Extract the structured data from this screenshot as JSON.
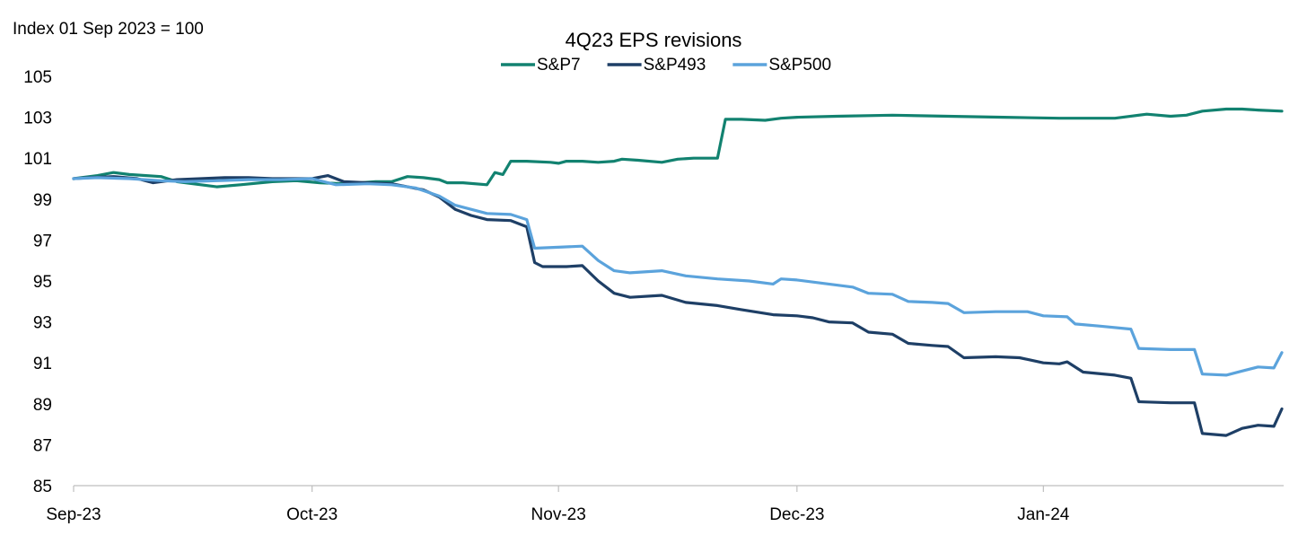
{
  "chart_data": {
    "type": "line",
    "title": "4Q23 EPS revisions",
    "index_note": "Index 01 Sep 2023 = 100",
    "xlabel": "",
    "ylabel": "",
    "ylim": [
      85,
      105
    ],
    "yticks": [
      85,
      87,
      89,
      91,
      93,
      95,
      97,
      99,
      101,
      103,
      105
    ],
    "xlim": [
      "2023-09-01",
      "2024-01-31"
    ],
    "xticks": [
      {
        "date": "2023-09-01",
        "label": "Sep-23"
      },
      {
        "date": "2023-10-01",
        "label": "Oct-23"
      },
      {
        "date": "2023-11-01",
        "label": "Nov-23"
      },
      {
        "date": "2023-12-01",
        "label": "Dec-23"
      },
      {
        "date": "2024-01-01",
        "label": "Jan-24"
      }
    ],
    "grid": false,
    "legend_position": "top-center",
    "series": [
      {
        "name": "S&P7",
        "color": "#128270",
        "points": [
          [
            "2023-09-01",
            100.0
          ],
          [
            "2023-09-04",
            100.15
          ],
          [
            "2023-09-06",
            100.3
          ],
          [
            "2023-09-08",
            100.2
          ],
          [
            "2023-09-12",
            100.1
          ],
          [
            "2023-09-14",
            99.85
          ],
          [
            "2023-09-15",
            99.8
          ],
          [
            "2023-09-19",
            99.6
          ],
          [
            "2023-09-22",
            99.7
          ],
          [
            "2023-09-26",
            99.85
          ],
          [
            "2023-09-29",
            99.9
          ],
          [
            "2023-10-02",
            99.8
          ],
          [
            "2023-10-05",
            99.75
          ],
          [
            "2023-10-07",
            99.8
          ],
          [
            "2023-10-09",
            99.85
          ],
          [
            "2023-10-11",
            99.85
          ],
          [
            "2023-10-13",
            100.1
          ],
          [
            "2023-10-15",
            100.05
          ],
          [
            "2023-10-17",
            99.95
          ],
          [
            "2023-10-18",
            99.8
          ],
          [
            "2023-10-20",
            99.8
          ],
          [
            "2023-10-23",
            99.7
          ],
          [
            "2023-10-24",
            100.3
          ],
          [
            "2023-10-25",
            100.2
          ],
          [
            "2023-10-26",
            100.85
          ],
          [
            "2023-10-28",
            100.85
          ],
          [
            "2023-10-31",
            100.8
          ],
          [
            "2023-11-01",
            100.75
          ],
          [
            "2023-11-02",
            100.85
          ],
          [
            "2023-11-04",
            100.85
          ],
          [
            "2023-11-06",
            100.8
          ],
          [
            "2023-11-08",
            100.85
          ],
          [
            "2023-11-09",
            100.95
          ],
          [
            "2023-11-11",
            100.9
          ],
          [
            "2023-11-14",
            100.8
          ],
          [
            "2023-11-16",
            100.95
          ],
          [
            "2023-11-18",
            101.0
          ],
          [
            "2023-11-21",
            101.0
          ],
          [
            "2023-11-22",
            102.9
          ],
          [
            "2023-11-24",
            102.9
          ],
          [
            "2023-11-27",
            102.85
          ],
          [
            "2023-11-29",
            102.95
          ],
          [
            "2023-12-01",
            103.0
          ],
          [
            "2023-12-06",
            103.05
          ],
          [
            "2023-12-13",
            103.1
          ],
          [
            "2023-12-20",
            103.05
          ],
          [
            "2023-12-27",
            103.0
          ],
          [
            "2024-01-03",
            102.95
          ],
          [
            "2024-01-10",
            102.95
          ],
          [
            "2024-01-14",
            103.15
          ],
          [
            "2024-01-17",
            103.05
          ],
          [
            "2024-01-19",
            103.1
          ],
          [
            "2024-01-21",
            103.3
          ],
          [
            "2024-01-24",
            103.4
          ],
          [
            "2024-01-26",
            103.4
          ],
          [
            "2024-01-28",
            103.35
          ],
          [
            "2024-01-31",
            103.3
          ]
        ]
      },
      {
        "name": "S&P493",
        "color": "#1E3F66",
        "points": [
          [
            "2023-09-01",
            100.0
          ],
          [
            "2023-09-03",
            100.05
          ],
          [
            "2023-09-06",
            100.1
          ],
          [
            "2023-09-09",
            100.0
          ],
          [
            "2023-09-11",
            99.8
          ],
          [
            "2023-09-14",
            99.95
          ],
          [
            "2023-09-17",
            100.0
          ],
          [
            "2023-09-20",
            100.05
          ],
          [
            "2023-09-23",
            100.05
          ],
          [
            "2023-09-26",
            100.0
          ],
          [
            "2023-09-29",
            100.0
          ],
          [
            "2023-10-01",
            100.0
          ],
          [
            "2023-10-03",
            100.15
          ],
          [
            "2023-10-05",
            99.85
          ],
          [
            "2023-10-08",
            99.8
          ],
          [
            "2023-10-11",
            99.75
          ],
          [
            "2023-10-13",
            99.6
          ],
          [
            "2023-10-15",
            99.45
          ],
          [
            "2023-10-17",
            99.1
          ],
          [
            "2023-10-19",
            98.5
          ],
          [
            "2023-10-21",
            98.2
          ],
          [
            "2023-10-23",
            98.0
          ],
          [
            "2023-10-26",
            97.95
          ],
          [
            "2023-10-28",
            97.65
          ],
          [
            "2023-10-29",
            95.9
          ],
          [
            "2023-10-30",
            95.7
          ],
          [
            "2023-11-02",
            95.7
          ],
          [
            "2023-11-04",
            95.75
          ],
          [
            "2023-11-06",
            95.0
          ],
          [
            "2023-11-08",
            94.4
          ],
          [
            "2023-11-10",
            94.2
          ],
          [
            "2023-11-14",
            94.3
          ],
          [
            "2023-11-17",
            93.95
          ],
          [
            "2023-11-21",
            93.8
          ],
          [
            "2023-11-24",
            93.6
          ],
          [
            "2023-11-28",
            93.35
          ],
          [
            "2023-12-01",
            93.3
          ],
          [
            "2023-12-03",
            93.2
          ],
          [
            "2023-12-05",
            93.0
          ],
          [
            "2023-12-08",
            92.95
          ],
          [
            "2023-12-10",
            92.5
          ],
          [
            "2023-12-13",
            92.4
          ],
          [
            "2023-12-15",
            91.95
          ],
          [
            "2023-12-18",
            91.85
          ],
          [
            "2023-12-20",
            91.8
          ],
          [
            "2023-12-22",
            91.25
          ],
          [
            "2023-12-26",
            91.3
          ],
          [
            "2023-12-29",
            91.25
          ],
          [
            "2024-01-01",
            91.0
          ],
          [
            "2024-01-03",
            90.95
          ],
          [
            "2024-01-04",
            91.05
          ],
          [
            "2024-01-06",
            90.55
          ],
          [
            "2024-01-10",
            90.4
          ],
          [
            "2024-01-12",
            90.25
          ],
          [
            "2024-01-13",
            89.1
          ],
          [
            "2024-01-17",
            89.05
          ],
          [
            "2024-01-20",
            89.05
          ],
          [
            "2024-01-21",
            87.55
          ],
          [
            "2024-01-24",
            87.45
          ],
          [
            "2024-01-26",
            87.8
          ],
          [
            "2024-01-28",
            87.95
          ],
          [
            "2024-01-30",
            87.9
          ],
          [
            "2024-01-31",
            88.75
          ]
        ]
      },
      {
        "name": "S&P500",
        "color": "#5BA3DC",
        "points": [
          [
            "2023-09-01",
            100.0
          ],
          [
            "2023-09-04",
            100.05
          ],
          [
            "2023-09-08",
            100.0
          ],
          [
            "2023-09-12",
            99.9
          ],
          [
            "2023-09-15",
            99.85
          ],
          [
            "2023-09-19",
            99.9
          ],
          [
            "2023-09-23",
            99.95
          ],
          [
            "2023-09-27",
            99.95
          ],
          [
            "2023-10-01",
            100.0
          ],
          [
            "2023-10-04",
            99.7
          ],
          [
            "2023-10-08",
            99.75
          ],
          [
            "2023-10-11",
            99.7
          ],
          [
            "2023-10-14",
            99.55
          ],
          [
            "2023-10-17",
            99.15
          ],
          [
            "2023-10-19",
            98.7
          ],
          [
            "2023-10-21",
            98.5
          ],
          [
            "2023-10-23",
            98.3
          ],
          [
            "2023-10-26",
            98.25
          ],
          [
            "2023-10-28",
            98.0
          ],
          [
            "2023-10-29",
            96.6
          ],
          [
            "2023-11-01",
            96.65
          ],
          [
            "2023-11-04",
            96.7
          ],
          [
            "2023-11-06",
            96.0
          ],
          [
            "2023-11-08",
            95.5
          ],
          [
            "2023-11-10",
            95.4
          ],
          [
            "2023-11-14",
            95.5
          ],
          [
            "2023-11-17",
            95.25
          ],
          [
            "2023-11-21",
            95.1
          ],
          [
            "2023-11-25",
            95.0
          ],
          [
            "2023-11-28",
            94.85
          ],
          [
            "2023-11-29",
            95.1
          ],
          [
            "2023-12-01",
            95.05
          ],
          [
            "2023-12-05",
            94.85
          ],
          [
            "2023-12-08",
            94.7
          ],
          [
            "2023-12-10",
            94.4
          ],
          [
            "2023-12-13",
            94.35
          ],
          [
            "2023-12-15",
            94.0
          ],
          [
            "2023-12-18",
            93.95
          ],
          [
            "2023-12-20",
            93.9
          ],
          [
            "2023-12-22",
            93.45
          ],
          [
            "2023-12-26",
            93.5
          ],
          [
            "2023-12-30",
            93.5
          ],
          [
            "2024-01-01",
            93.3
          ],
          [
            "2024-01-04",
            93.25
          ],
          [
            "2024-01-05",
            92.9
          ],
          [
            "2024-01-08",
            92.8
          ],
          [
            "2024-01-12",
            92.65
          ],
          [
            "2024-01-13",
            91.7
          ],
          [
            "2024-01-17",
            91.65
          ],
          [
            "2024-01-20",
            91.65
          ],
          [
            "2024-01-21",
            90.45
          ],
          [
            "2024-01-24",
            90.4
          ],
          [
            "2024-01-26",
            90.6
          ],
          [
            "2024-01-28",
            90.8
          ],
          [
            "2024-01-30",
            90.75
          ],
          [
            "2024-01-31",
            91.5
          ]
        ]
      }
    ]
  }
}
